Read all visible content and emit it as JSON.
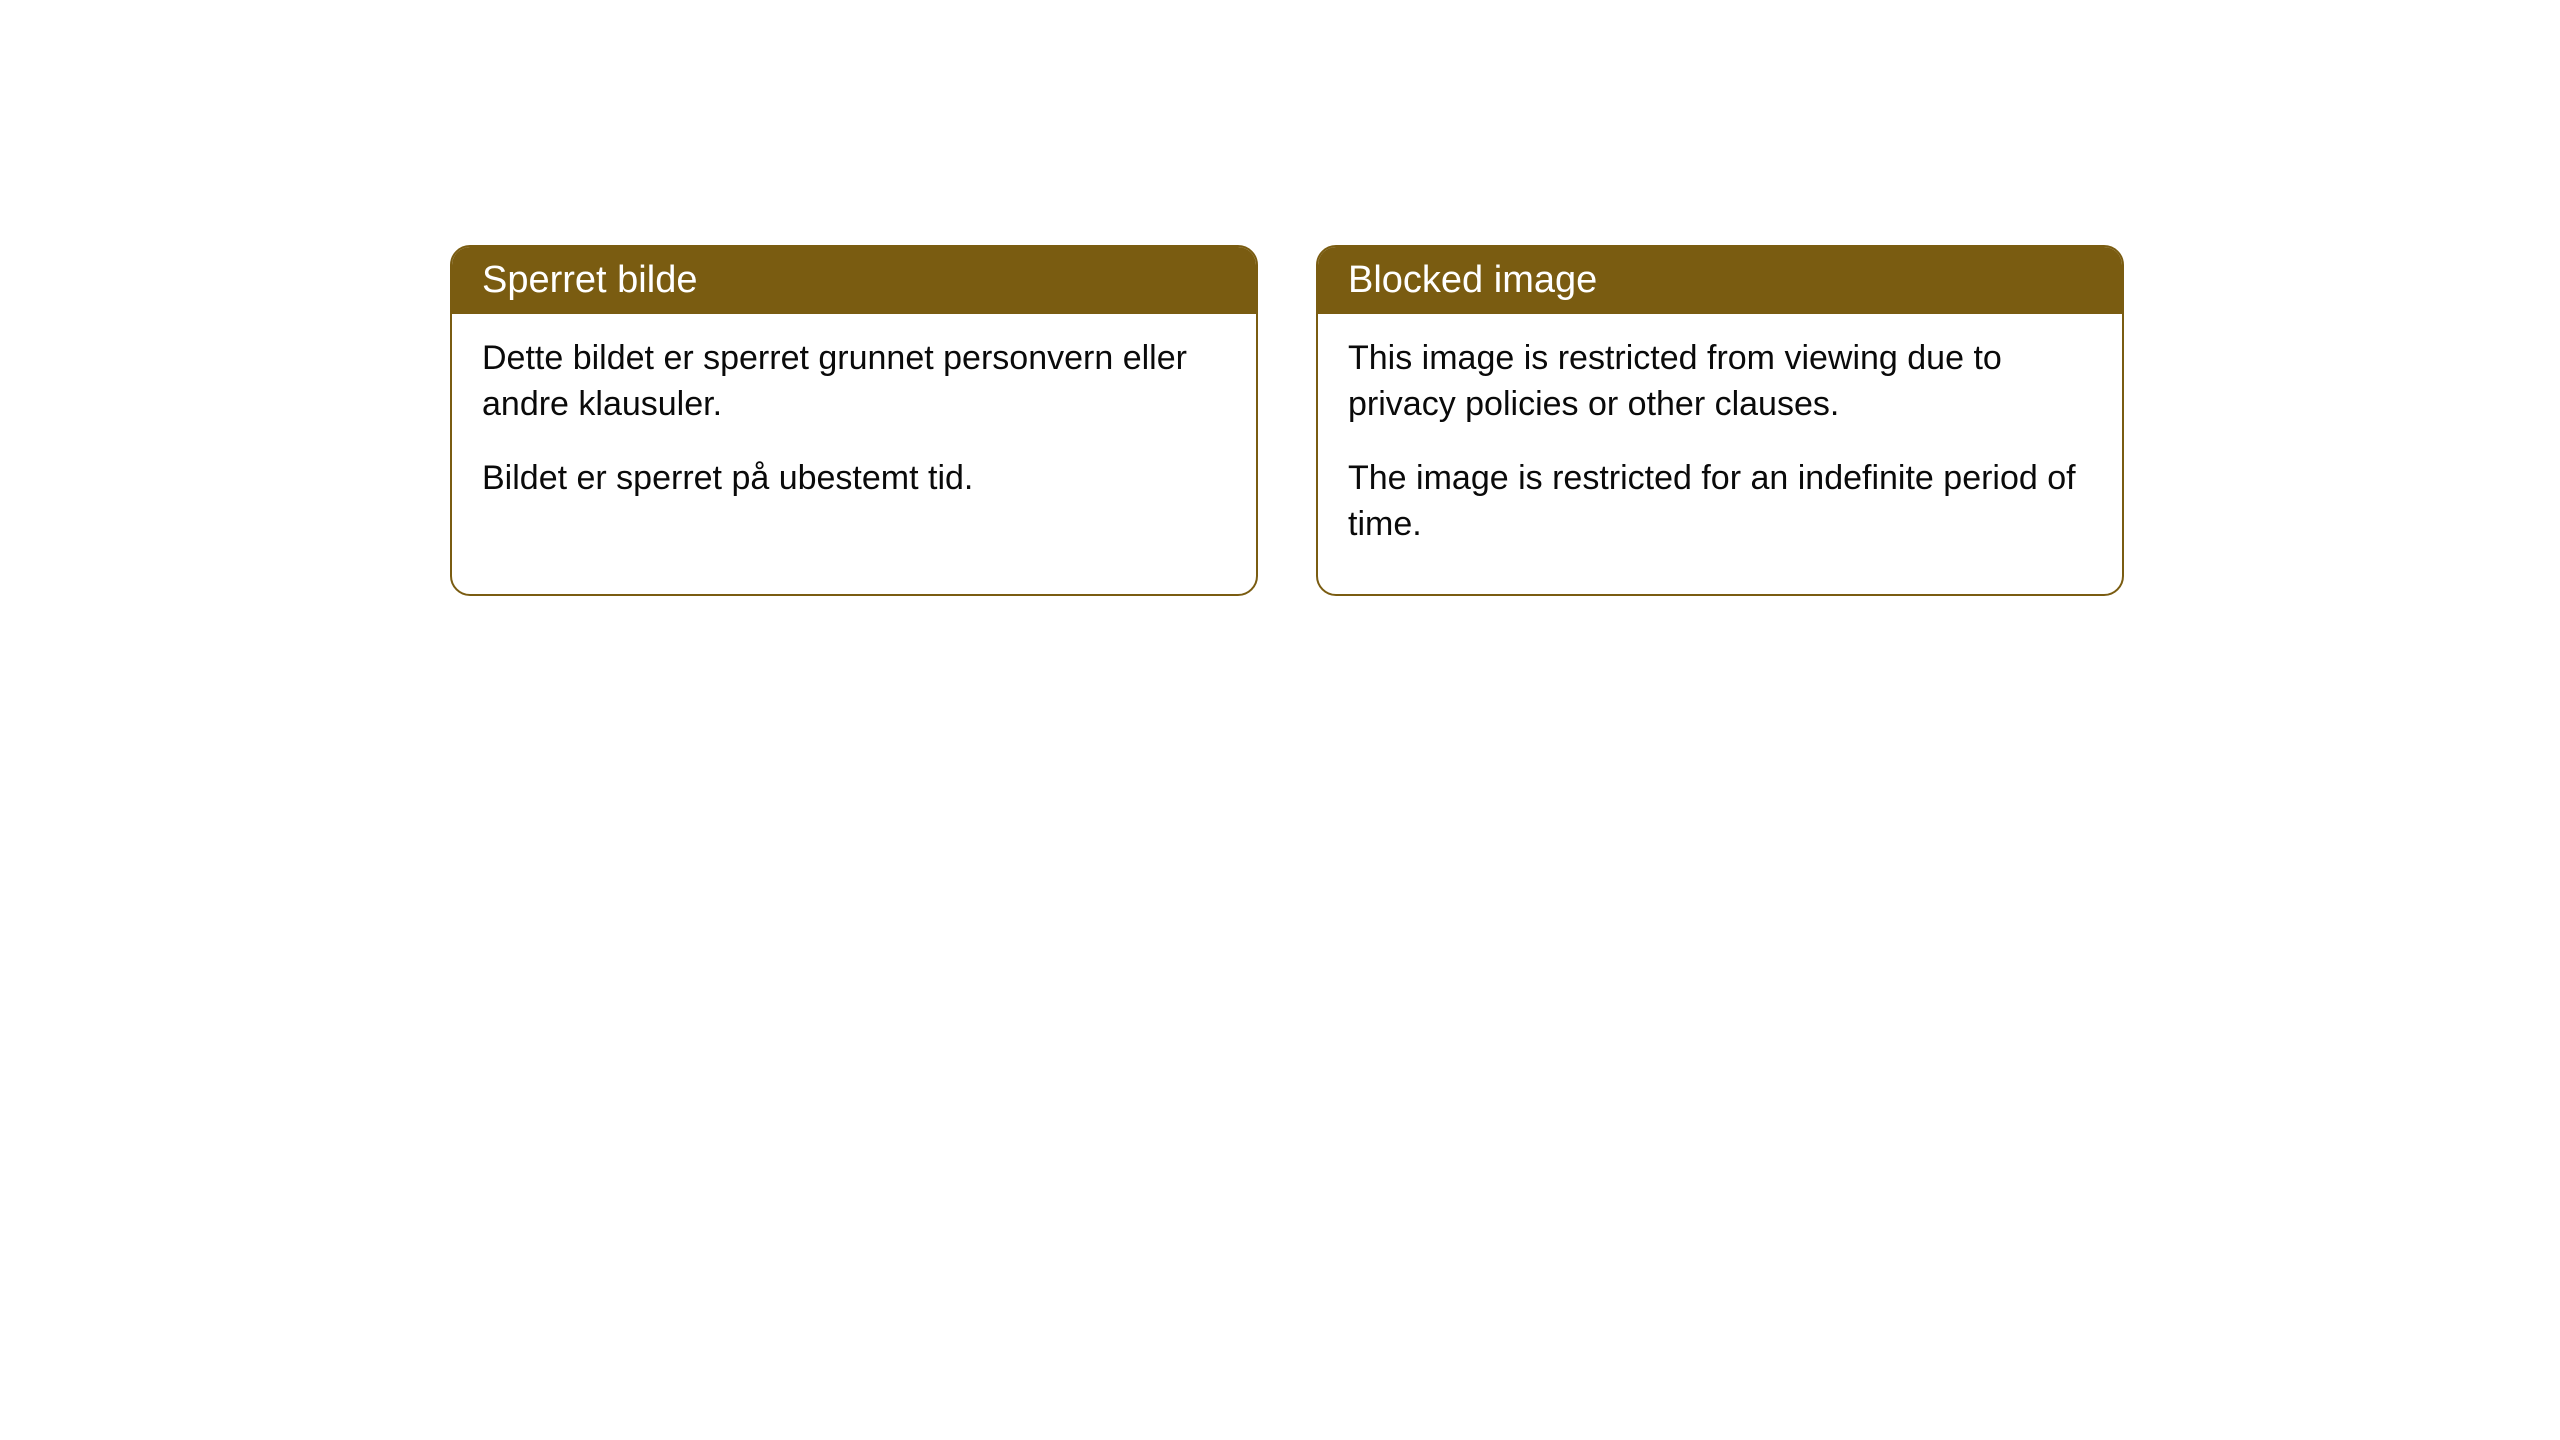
{
  "cards": [
    {
      "title": "Sperret bilde",
      "paragraph1": "Dette bildet er sperret grunnet personvern eller andre klausuler.",
      "paragraph2": "Bildet er sperret på ubestemt tid."
    },
    {
      "title": "Blocked image",
      "paragraph1": "This image is restricted from viewing due to privacy policies or other clauses.",
      "paragraph2": "The image is restricted for an indefinite period of time."
    }
  ],
  "styling": {
    "header_bg_color": "#7a5c11",
    "header_text_color": "#ffffff",
    "body_text_color": "#0a0a0a",
    "border_color": "#7a5c11",
    "background_color": "#ffffff",
    "border_radius": 20,
    "header_fontsize": 38,
    "body_fontsize": 34
  }
}
